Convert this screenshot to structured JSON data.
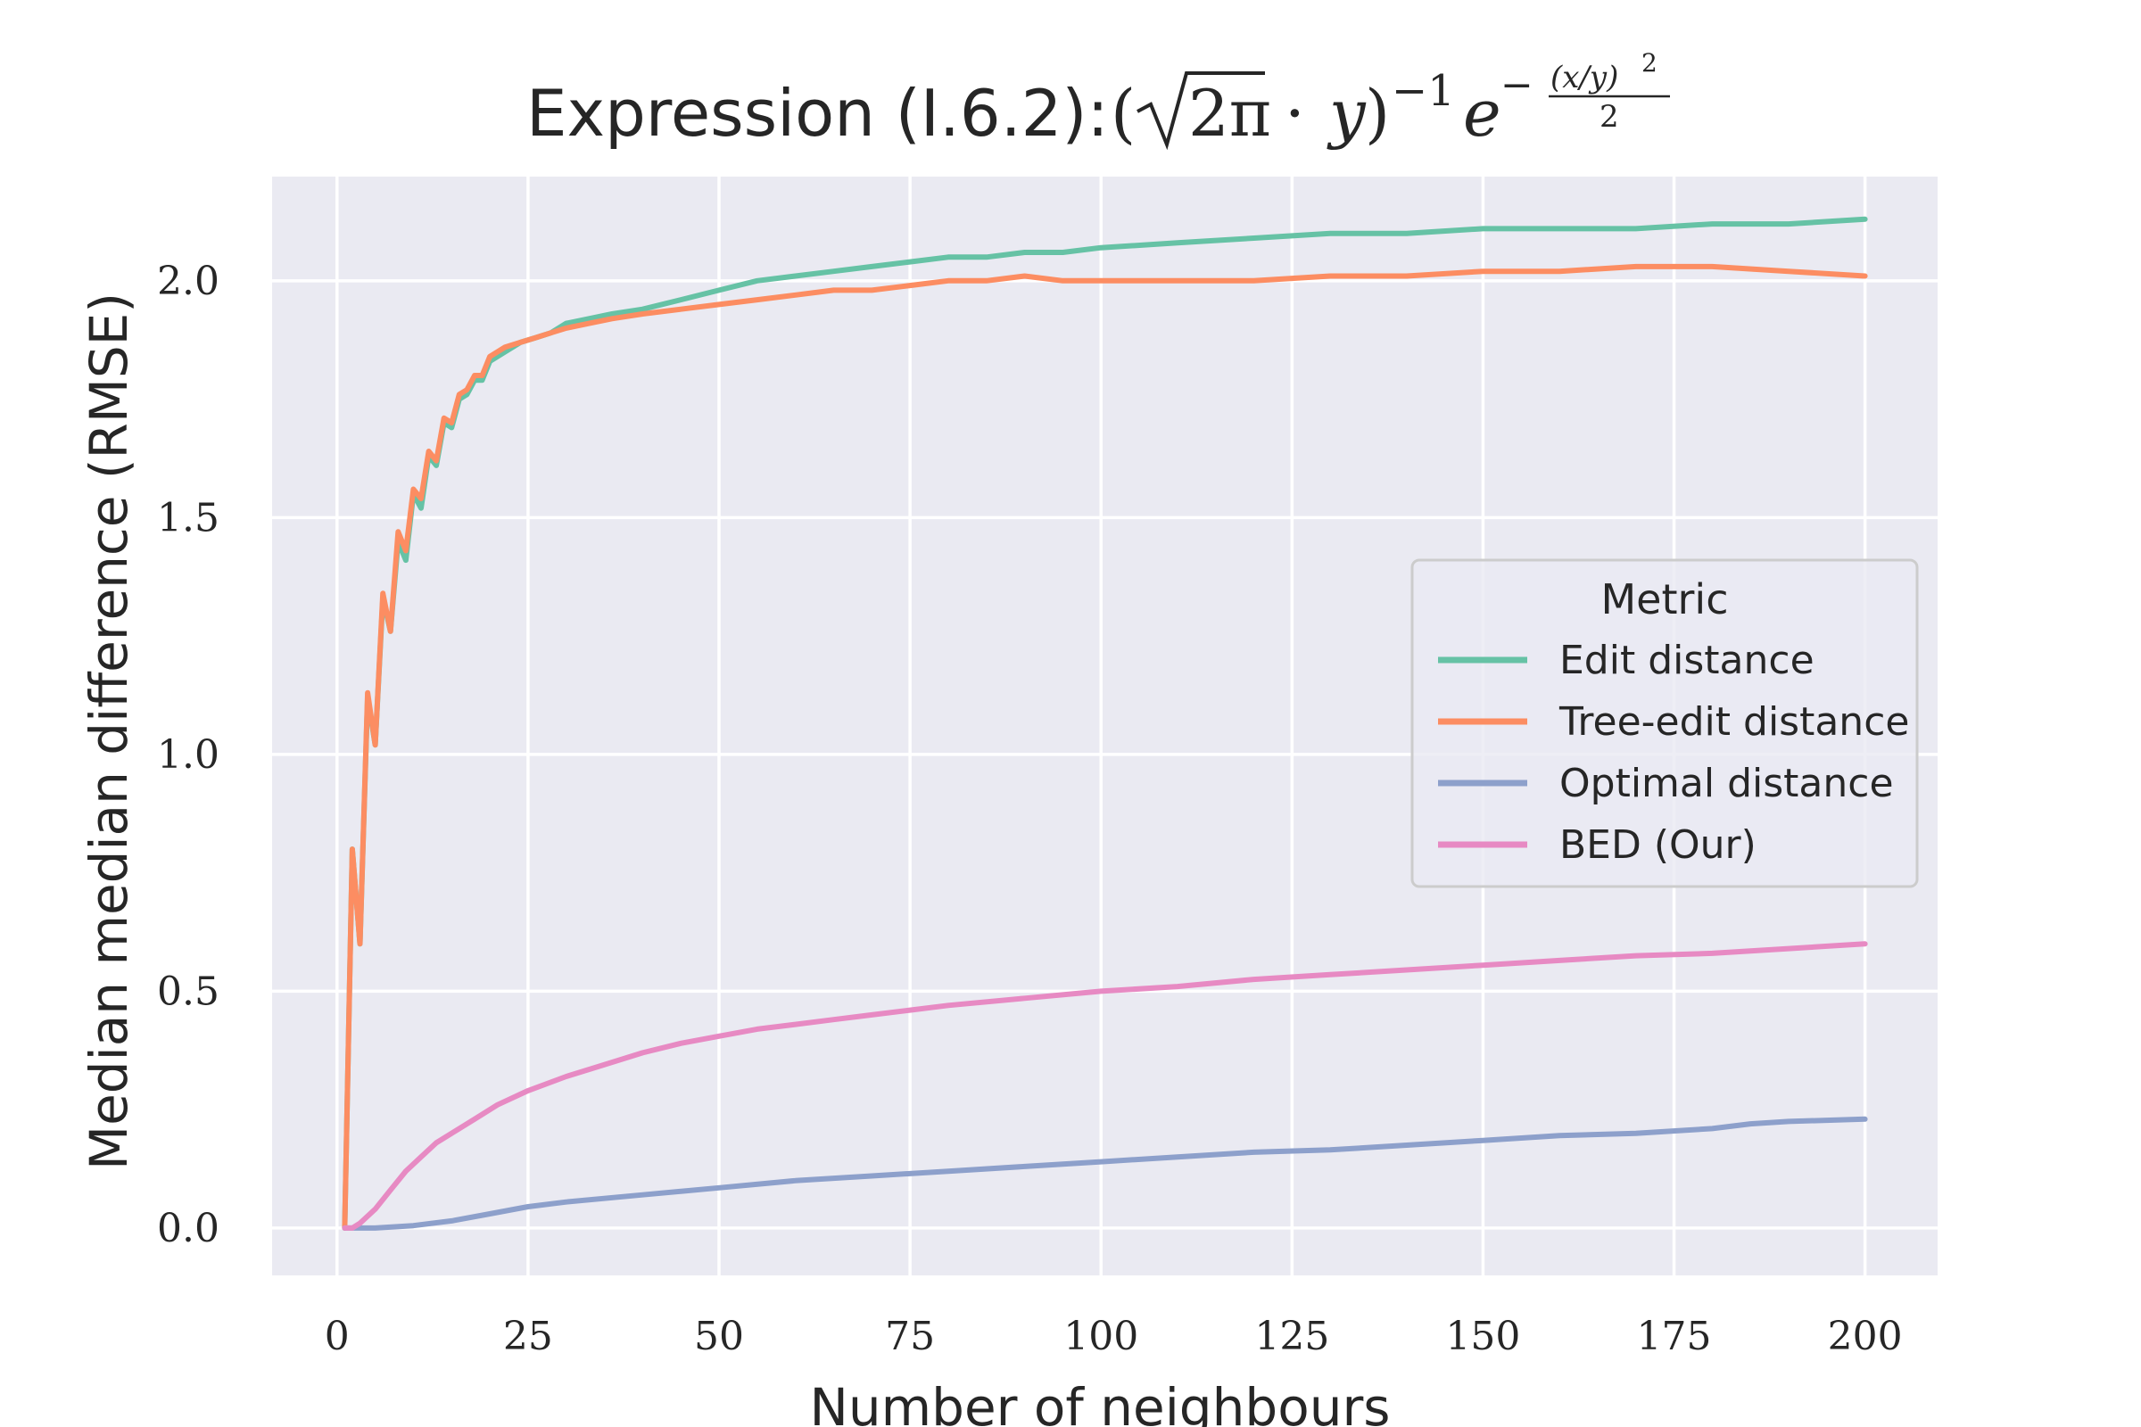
{
  "chart_data": {
    "type": "line",
    "title": "Expression (I.6.2):",
    "title_math": {
      "open": "(",
      "sqrt_body": "2π",
      "dot": "·",
      "y": "y",
      "close": ")",
      "sup_neg1": "−1",
      "e": "e",
      "minus": "−",
      "frac_num": "(x/y)",
      "frac_num_sup": "2",
      "frac_den": "2"
    },
    "xlabel": "Number of neighbours",
    "ylabel": "Median median difference (RMSE)",
    "xlim": [
      -8.5,
      209.5
    ],
    "ylim": [
      -0.1,
      2.22
    ],
    "xticks": [
      0,
      25,
      50,
      75,
      100,
      125,
      150,
      175,
      200
    ],
    "yticks": [
      0.0,
      0.5,
      1.0,
      1.5,
      2.0
    ],
    "xtick_labels": [
      "0",
      "25",
      "50",
      "75",
      "100",
      "125",
      "150",
      "175",
      "200"
    ],
    "ytick_labels": [
      "0.0",
      "0.5",
      "1.0",
      "1.5",
      "2.0"
    ],
    "grid": true,
    "background": "#eaeaf2",
    "grid_color": "#ffffff",
    "legend": {
      "title": "Metric",
      "placement": "center-right"
    },
    "series": [
      {
        "name": "Edit distance",
        "color": "#66c2a5",
        "x": [
          1,
          2,
          3,
          4,
          5,
          6,
          7,
          8,
          9,
          10,
          11,
          12,
          13,
          14,
          15,
          16,
          17,
          18,
          19,
          20,
          22,
          24,
          26,
          28,
          30,
          33,
          36,
          40,
          45,
          50,
          55,
          60,
          65,
          70,
          75,
          80,
          85,
          90,
          95,
          100,
          110,
          120,
          130,
          140,
          150,
          160,
          170,
          180,
          190,
          200
        ],
        "y": [
          0.0,
          0.8,
          0.6,
          1.12,
          1.02,
          1.33,
          1.26,
          1.45,
          1.41,
          1.55,
          1.52,
          1.63,
          1.61,
          1.7,
          1.69,
          1.75,
          1.76,
          1.79,
          1.79,
          1.83,
          1.85,
          1.87,
          1.88,
          1.89,
          1.91,
          1.92,
          1.93,
          1.94,
          1.96,
          1.98,
          2.0,
          2.01,
          2.02,
          2.03,
          2.04,
          2.05,
          2.05,
          2.06,
          2.06,
          2.07,
          2.08,
          2.09,
          2.1,
          2.1,
          2.11,
          2.11,
          2.11,
          2.12,
          2.12,
          2.13
        ]
      },
      {
        "name": "Tree-edit distance",
        "color": "#fc8d62",
        "x": [
          1,
          2,
          3,
          4,
          5,
          6,
          7,
          8,
          9,
          10,
          11,
          12,
          13,
          14,
          15,
          16,
          17,
          18,
          19,
          20,
          22,
          24,
          26,
          28,
          30,
          33,
          36,
          40,
          45,
          50,
          55,
          60,
          65,
          70,
          75,
          80,
          85,
          90,
          95,
          100,
          110,
          120,
          130,
          140,
          150,
          160,
          170,
          180,
          190,
          200
        ],
        "y": [
          0.0,
          0.8,
          0.6,
          1.13,
          1.02,
          1.34,
          1.26,
          1.47,
          1.43,
          1.56,
          1.54,
          1.64,
          1.62,
          1.71,
          1.7,
          1.76,
          1.77,
          1.8,
          1.8,
          1.84,
          1.86,
          1.87,
          1.88,
          1.89,
          1.9,
          1.91,
          1.92,
          1.93,
          1.94,
          1.95,
          1.96,
          1.97,
          1.98,
          1.98,
          1.99,
          2.0,
          2.0,
          2.01,
          2.0,
          2.0,
          2.0,
          2.0,
          2.01,
          2.01,
          2.02,
          2.02,
          2.03,
          2.03,
          2.02,
          2.01
        ]
      },
      {
        "name": "Optimal distance",
        "color": "#8da0cb",
        "x": [
          1,
          5,
          10,
          15,
          20,
          25,
          30,
          40,
          50,
          60,
          70,
          80,
          90,
          100,
          110,
          120,
          130,
          140,
          150,
          160,
          170,
          180,
          185,
          190,
          200
        ],
        "y": [
          0.0,
          0.0,
          0.005,
          0.015,
          0.03,
          0.045,
          0.055,
          0.07,
          0.085,
          0.1,
          0.11,
          0.12,
          0.13,
          0.14,
          0.15,
          0.16,
          0.165,
          0.175,
          0.185,
          0.195,
          0.2,
          0.21,
          0.22,
          0.225,
          0.23
        ]
      },
      {
        "name": "BED (Our)",
        "color": "#e78ac3",
        "x": [
          1,
          2,
          3,
          5,
          7,
          9,
          11,
          13,
          15,
          18,
          21,
          25,
          30,
          35,
          40,
          45,
          50,
          55,
          60,
          65,
          70,
          75,
          80,
          90,
          100,
          110,
          120,
          130,
          140,
          150,
          160,
          170,
          180,
          190,
          200
        ],
        "y": [
          0.0,
          0.0,
          0.01,
          0.04,
          0.08,
          0.12,
          0.15,
          0.18,
          0.2,
          0.23,
          0.26,
          0.29,
          0.32,
          0.345,
          0.37,
          0.39,
          0.405,
          0.42,
          0.43,
          0.44,
          0.45,
          0.46,
          0.47,
          0.485,
          0.5,
          0.51,
          0.525,
          0.535,
          0.545,
          0.555,
          0.565,
          0.575,
          0.58,
          0.59,
          0.6
        ]
      }
    ]
  }
}
